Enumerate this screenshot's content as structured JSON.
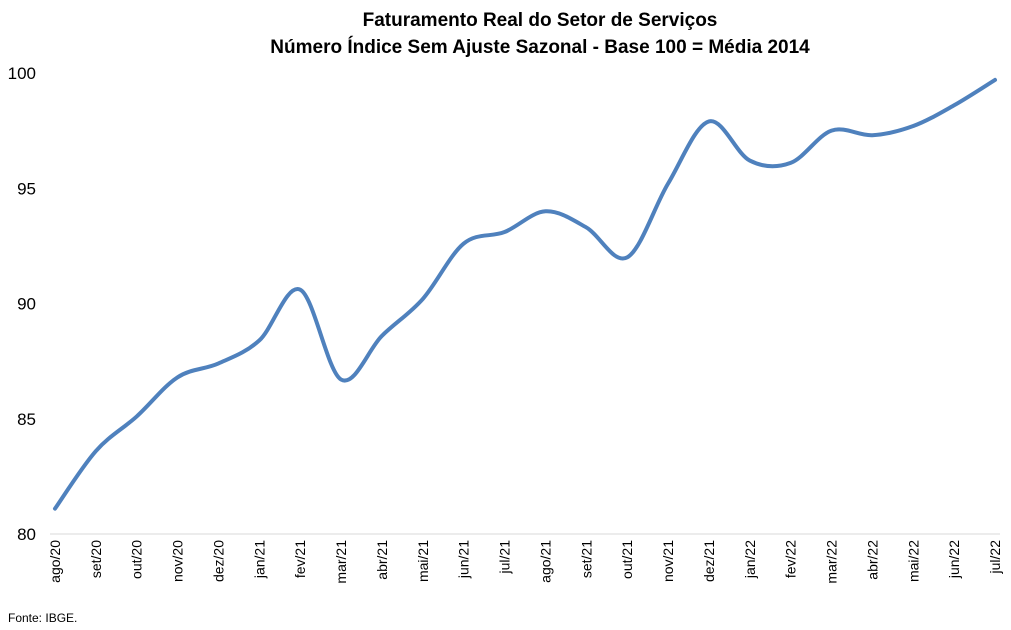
{
  "chart_data": {
    "type": "line",
    "title": "Faturamento Real do Setor de Serviços",
    "subtitle": "Número Índice Sem Ajuste Sazonal - Base 100 = Média 2014",
    "categories": [
      "ago/20",
      "set/20",
      "out/20",
      "nov/20",
      "dez/20",
      "jan/21",
      "fev/21",
      "mar/21",
      "abr/21",
      "mai/21",
      "jun/21",
      "jul/21",
      "ago/21",
      "set/21",
      "out/21",
      "nov/21",
      "dez/21",
      "jan/22",
      "fev/22",
      "mar/22",
      "abr/22",
      "mai/22",
      "jun/22",
      "jul/22"
    ],
    "series": [
      {
        "values": [
          81.1,
          83.6,
          85.1,
          86.8,
          87.4,
          88.4,
          90.6,
          86.7,
          88.6,
          90.2,
          92.6,
          93.1,
          94.0,
          93.3,
          92.0,
          95.2,
          97.9,
          96.2,
          96.1,
          97.5,
          97.3,
          97.7,
          98.6,
          99.7
        ],
        "color": "#4f81bd"
      }
    ],
    "ylim": [
      80,
      100
    ],
    "yticks": [
      80,
      85,
      90,
      95,
      100
    ],
    "grid": false,
    "legend": "none"
  },
  "source": "Fonte: IBGE."
}
